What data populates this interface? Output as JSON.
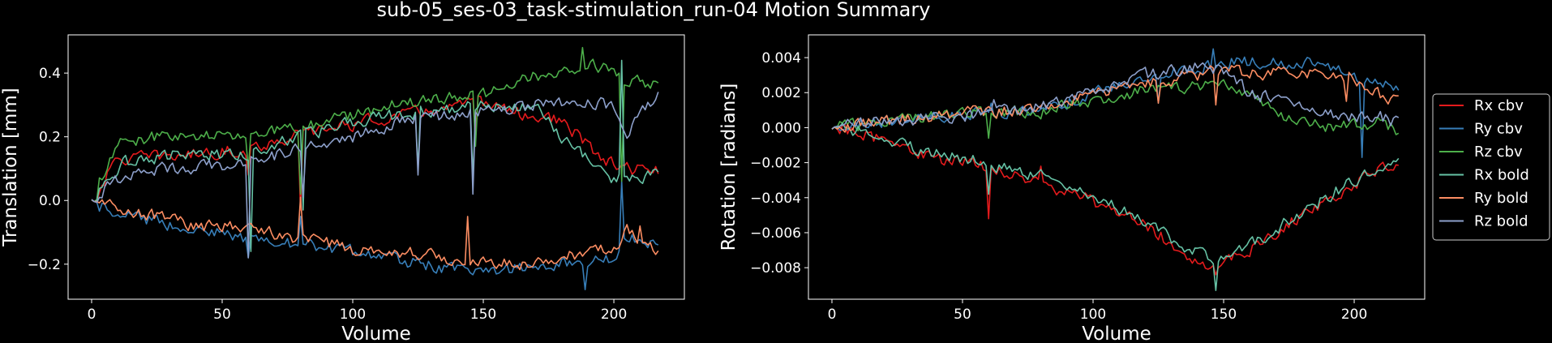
{
  "figure": {
    "title": "sub-05_ses-03_task-stimulation_run-04 Motion Summary"
  },
  "legend": {
    "placement": "right, outside plots",
    "entries": [
      {
        "label": "Rx cbv",
        "color": "#e41a1c"
      },
      {
        "label": "Ry cbv",
        "color": "#377eb8"
      },
      {
        "label": "Rz cbv",
        "color": "#4daf4a"
      },
      {
        "label": "Rx bold",
        "color": "#66c2a5"
      },
      {
        "label": "Ry bold",
        "color": "#fc8d62"
      },
      {
        "label": "Rz bold",
        "color": "#8da0cb"
      }
    ]
  },
  "chart_data": [
    {
      "type": "line",
      "xlabel": "Volume",
      "ylabel": "Translation [mm]",
      "xlim": [
        -9,
        227
      ],
      "ylim": [
        -0.31,
        0.52
      ],
      "xticks": [
        0,
        50,
        100,
        150,
        200
      ],
      "yticks": [
        -0.2,
        0.0,
        0.2,
        0.4
      ],
      "ytick_labels": [
        "−0.2",
        "0.0",
        "0.2",
        "0.4"
      ],
      "n_points": 218,
      "grid": false,
      "series": [
        {
          "color": "#e41a1c",
          "anchors": [
            [
              0,
              0.0
            ],
            [
              10,
              0.13
            ],
            [
              30,
              0.14
            ],
            [
              60,
              0.16
            ],
            [
              80,
              0.21
            ],
            [
              100,
              0.24
            ],
            [
              120,
              0.27
            ],
            [
              150,
              0.31
            ],
            [
              165,
              0.27
            ],
            [
              180,
              0.25
            ],
            [
              195,
              0.13
            ],
            [
              205,
              0.1
            ],
            [
              217,
              0.09
            ]
          ],
          "spikes": [
            [
              60,
              0.08
            ],
            [
              80,
              -0.03
            ],
            [
              147,
              0.2
            ]
          ]
        },
        {
          "color": "#377eb8",
          "anchors": [
            [
              0,
              0.0
            ],
            [
              15,
              -0.05
            ],
            [
              40,
              -0.09
            ],
            [
              60,
              -0.12
            ],
            [
              80,
              -0.14
            ],
            [
              100,
              -0.16
            ],
            [
              120,
              -0.19
            ],
            [
              150,
              -0.23
            ],
            [
              170,
              -0.2
            ],
            [
              190,
              -0.19
            ],
            [
              200,
              -0.18
            ],
            [
              205,
              -0.12
            ],
            [
              217,
              -0.13
            ]
          ],
          "spikes": [
            [
              60,
              -0.18
            ],
            [
              80,
              -0.05
            ],
            [
              189,
              -0.28
            ],
            [
              203,
              0.06
            ]
          ]
        },
        {
          "color": "#4daf4a",
          "anchors": [
            [
              0,
              0.0
            ],
            [
              10,
              0.18
            ],
            [
              30,
              0.21
            ],
            [
              60,
              0.2
            ],
            [
              80,
              0.23
            ],
            [
              100,
              0.27
            ],
            [
              120,
              0.31
            ],
            [
              150,
              0.33
            ],
            [
              170,
              0.39
            ],
            [
              190,
              0.43
            ],
            [
              200,
              0.41
            ],
            [
              205,
              0.37
            ],
            [
              217,
              0.37
            ]
          ],
          "spikes": [
            [
              60,
              0.1
            ],
            [
              80,
              0.02
            ],
            [
              147,
              0.17
            ],
            [
              188,
              0.48
            ],
            [
              203,
              0.06
            ]
          ]
        },
        {
          "color": "#66c2a5",
          "anchors": [
            [
              0,
              0.0
            ],
            [
              12,
              0.12
            ],
            [
              30,
              0.14
            ],
            [
              60,
              0.15
            ],
            [
              80,
              0.2
            ],
            [
              100,
              0.25
            ],
            [
              120,
              0.27
            ],
            [
              150,
              0.3
            ],
            [
              170,
              0.29
            ],
            [
              185,
              0.16
            ],
            [
              200,
              0.07
            ],
            [
              210,
              0.07
            ],
            [
              217,
              0.08
            ]
          ],
          "spikes": [
            [
              61,
              -0.16
            ],
            [
              81,
              -0.03
            ],
            [
              125,
              0.1
            ],
            [
              146,
              0.07
            ],
            [
              203,
              0.44
            ]
          ]
        },
        {
          "color": "#fc8d62",
          "anchors": [
            [
              0,
              0.0
            ],
            [
              15,
              -0.03
            ],
            [
              40,
              -0.08
            ],
            [
              60,
              -0.09
            ],
            [
              80,
              -0.12
            ],
            [
              100,
              -0.15
            ],
            [
              120,
              -0.16
            ],
            [
              150,
              -0.2
            ],
            [
              170,
              -0.2
            ],
            [
              195,
              -0.15
            ],
            [
              200,
              -0.16
            ],
            [
              205,
              -0.09
            ],
            [
              217,
              -0.16
            ]
          ],
          "spikes": [
            [
              80,
              0.01
            ],
            [
              144,
              -0.05
            ],
            [
              210,
              -0.08
            ]
          ]
        },
        {
          "color": "#8da0cb",
          "anchors": [
            [
              0,
              0.0
            ],
            [
              12,
              0.08
            ],
            [
              30,
              0.1
            ],
            [
              60,
              0.12
            ],
            [
              80,
              0.16
            ],
            [
              100,
              0.2
            ],
            [
              120,
              0.25
            ],
            [
              150,
              0.28
            ],
            [
              170,
              0.3
            ],
            [
              190,
              0.31
            ],
            [
              200,
              0.3
            ],
            [
              205,
              0.22
            ],
            [
              217,
              0.33
            ]
          ],
          "spikes": [
            [
              60,
              -0.18
            ],
            [
              81,
              0.01
            ],
            [
              125,
              0.08
            ],
            [
              146,
              0.02
            ],
            [
              201,
              0.27
            ]
          ]
        }
      ]
    },
    {
      "type": "line",
      "xlabel": "Volume",
      "ylabel": "Rotation [radians]",
      "xlim": [
        -9,
        227
      ],
      "ylim": [
        -0.0098,
        0.0053
      ],
      "xticks": [
        0,
        50,
        100,
        150,
        200
      ],
      "yticks": [
        -0.008,
        -0.006,
        -0.004,
        -0.002,
        0.0,
        0.002,
        0.004
      ],
      "ytick_labels": [
        "−0.008",
        "−0.006",
        "−0.004",
        "−0.002",
        "0.000",
        "0.002",
        "0.004"
      ],
      "n_points": 218,
      "grid": false,
      "series": [
        {
          "color": "#e41a1c",
          "anchors": [
            [
              0,
              0.0
            ],
            [
              10,
              -0.0002
            ],
            [
              25,
              -0.001
            ],
            [
              40,
              -0.0018
            ],
            [
              60,
              -0.0022
            ],
            [
              70,
              -0.0028
            ],
            [
              80,
              -0.0032
            ],
            [
              100,
              -0.0042
            ],
            [
              120,
              -0.0055
            ],
            [
              135,
              -0.0072
            ],
            [
              148,
              -0.008
            ],
            [
              165,
              -0.0065
            ],
            [
              180,
              -0.005
            ],
            [
              200,
              -0.0032
            ],
            [
              217,
              -0.0019
            ]
          ],
          "spikes": [
            [
              60,
              -0.0052
            ],
            [
              80,
              -0.0022
            ],
            [
              147,
              -0.0084
            ]
          ]
        },
        {
          "color": "#377eb8",
          "anchors": [
            [
              0,
              0.0
            ],
            [
              20,
              0.0004
            ],
            [
              50,
              0.0008
            ],
            [
              80,
              0.001
            ],
            [
              100,
              0.0019
            ],
            [
              120,
              0.0028
            ],
            [
              140,
              0.0034
            ],
            [
              150,
              0.0038
            ],
            [
              170,
              0.0038
            ],
            [
              190,
              0.0036
            ],
            [
              200,
              0.003
            ],
            [
              210,
              0.0024
            ],
            [
              217,
              0.0022
            ]
          ],
          "spikes": [
            [
              61,
              0.0014
            ],
            [
              125,
              0.0014
            ],
            [
              146,
              0.0045
            ],
            [
              203,
              -0.0017
            ]
          ]
        },
        {
          "color": "#4daf4a",
          "anchors": [
            [
              0,
              0.0
            ],
            [
              20,
              0.0004
            ],
            [
              50,
              0.0008
            ],
            [
              80,
              0.001
            ],
            [
              100,
              0.0016
            ],
            [
              120,
              0.0021
            ],
            [
              140,
              0.0024
            ],
            [
              150,
              0.0026
            ],
            [
              165,
              0.0014
            ],
            [
              175,
              0.0006
            ],
            [
              190,
              0.0001
            ],
            [
              200,
              0.0002
            ],
            [
              210,
              0.0003
            ],
            [
              217,
              -0.0002
            ]
          ],
          "spikes": [
            [
              60,
              -0.0006
            ],
            [
              80,
              0.0005
            ],
            [
              148,
              0.0024
            ]
          ]
        },
        {
          "color": "#66c2a5",
          "anchors": [
            [
              0,
              0.0
            ],
            [
              10,
              -0.0002
            ],
            [
              25,
              -0.0009
            ],
            [
              40,
              -0.0015
            ],
            [
              60,
              -0.002
            ],
            [
              70,
              -0.0026
            ],
            [
              80,
              -0.0029
            ],
            [
              100,
              -0.004
            ],
            [
              120,
              -0.0053
            ],
            [
              135,
              -0.007
            ],
            [
              147,
              -0.0075
            ],
            [
              165,
              -0.0063
            ],
            [
              180,
              -0.0048
            ],
            [
              200,
              -0.003
            ],
            [
              217,
              -0.0018
            ]
          ],
          "spikes": [
            [
              60,
              -0.0038
            ],
            [
              80,
              -0.0024
            ],
            [
              147,
              -0.0093
            ]
          ]
        },
        {
          "color": "#fc8d62",
          "anchors": [
            [
              0,
              0.0
            ],
            [
              20,
              0.0004
            ],
            [
              50,
              0.0008
            ],
            [
              80,
              0.0011
            ],
            [
              100,
              0.002
            ],
            [
              120,
              0.0026
            ],
            [
              140,
              0.003
            ],
            [
              150,
              0.0033
            ],
            [
              165,
              0.0031
            ],
            [
              190,
              0.003
            ],
            [
              200,
              0.0028
            ],
            [
              210,
              0.0018
            ],
            [
              217,
              0.0016
            ]
          ],
          "spikes": [
            [
              125,
              0.0014
            ],
            [
              147,
              0.0013
            ],
            [
              197,
              0.0015
            ],
            [
              203,
              0.0025
            ]
          ]
        },
        {
          "color": "#8da0cb",
          "anchors": [
            [
              0,
              0.0
            ],
            [
              20,
              0.0004
            ],
            [
              50,
              0.0007
            ],
            [
              80,
              0.0012
            ],
            [
              100,
              0.0021
            ],
            [
              120,
              0.003
            ],
            [
              140,
              0.0035
            ],
            [
              150,
              0.0032
            ],
            [
              160,
              0.002
            ],
            [
              180,
              0.0011
            ],
            [
              190,
              0.0007
            ],
            [
              200,
              0.0006
            ],
            [
              210,
              0.0006
            ],
            [
              217,
              0.0002
            ]
          ],
          "spikes": [
            [
              62,
              0.0016
            ],
            [
              203,
              0.0009
            ]
          ]
        }
      ]
    }
  ]
}
